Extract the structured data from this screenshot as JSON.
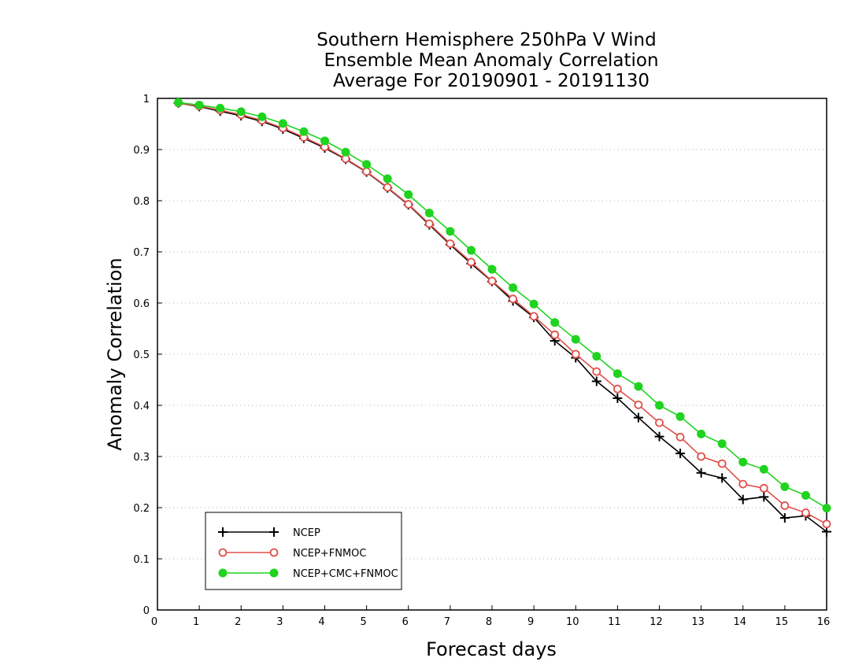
{
  "chart_data": {
    "type": "line",
    "title_lines": [
      "Southern Hemisphere 250hPa V Wind",
      "Ensemble Mean Anomaly Correlation",
      "Average For 20190901 - 20191130"
    ],
    "xlabel": "Forecast days",
    "ylabel": "Anomaly Correlation",
    "xlim": [
      0,
      16
    ],
    "ylim": [
      0,
      1
    ],
    "xticks": [
      "0",
      "1",
      "2",
      "3",
      "4",
      "5",
      "6",
      "7",
      "8",
      "9",
      "10",
      "11",
      "12",
      "13",
      "14",
      "15",
      "16"
    ],
    "yticks": [
      "0",
      "0.1",
      "0.2",
      "0.3",
      "0.4",
      "0.5",
      "0.6",
      "0.7",
      "0.8",
      "0.9",
      "1"
    ],
    "grid": "dotted horizontal",
    "legend_position": "bottom-left",
    "x": [
      0.5,
      1,
      1.5,
      2,
      2.5,
      3,
      3.5,
      4,
      4.5,
      5,
      5.5,
      6,
      6.5,
      7,
      7.5,
      8,
      8.5,
      9,
      9.5,
      10,
      10.5,
      11,
      11.5,
      12,
      12.5,
      13,
      13.5,
      14,
      14.5,
      15,
      15.5,
      16
    ],
    "series": [
      {
        "name": "NCEP",
        "color": "#000000",
        "marker": "plus",
        "values": [
          0.991,
          0.984,
          0.975,
          0.966,
          0.955,
          0.94,
          0.922,
          0.903,
          0.881,
          0.856,
          0.825,
          0.792,
          0.753,
          0.714,
          0.677,
          0.642,
          0.604,
          0.572,
          0.526,
          0.493,
          0.447,
          0.414,
          0.376,
          0.339,
          0.306,
          0.268,
          0.258,
          0.216,
          0.221,
          0.18,
          0.184,
          0.153
        ]
      },
      {
        "name": "NCEP+FNMOC",
        "color": "#e0504a",
        "marker": "open-circle",
        "values": [
          0.991,
          0.985,
          0.977,
          0.968,
          0.957,
          0.942,
          0.924,
          0.905,
          0.882,
          0.857,
          0.826,
          0.793,
          0.755,
          0.716,
          0.68,
          0.643,
          0.608,
          0.574,
          0.538,
          0.5,
          0.466,
          0.432,
          0.401,
          0.366,
          0.338,
          0.3,
          0.286,
          0.246,
          0.238,
          0.204,
          0.19,
          0.168
        ]
      },
      {
        "name": "NCEP+CMC+FNMOC",
        "color": "#1fd31f",
        "marker": "filled-circle",
        "values": [
          0.992,
          0.987,
          0.981,
          0.974,
          0.964,
          0.951,
          0.935,
          0.917,
          0.895,
          0.871,
          0.843,
          0.812,
          0.776,
          0.74,
          0.703,
          0.666,
          0.63,
          0.598,
          0.562,
          0.529,
          0.496,
          0.462,
          0.437,
          0.4,
          0.378,
          0.344,
          0.325,
          0.289,
          0.275,
          0.241,
          0.224,
          0.199
        ]
      }
    ]
  }
}
